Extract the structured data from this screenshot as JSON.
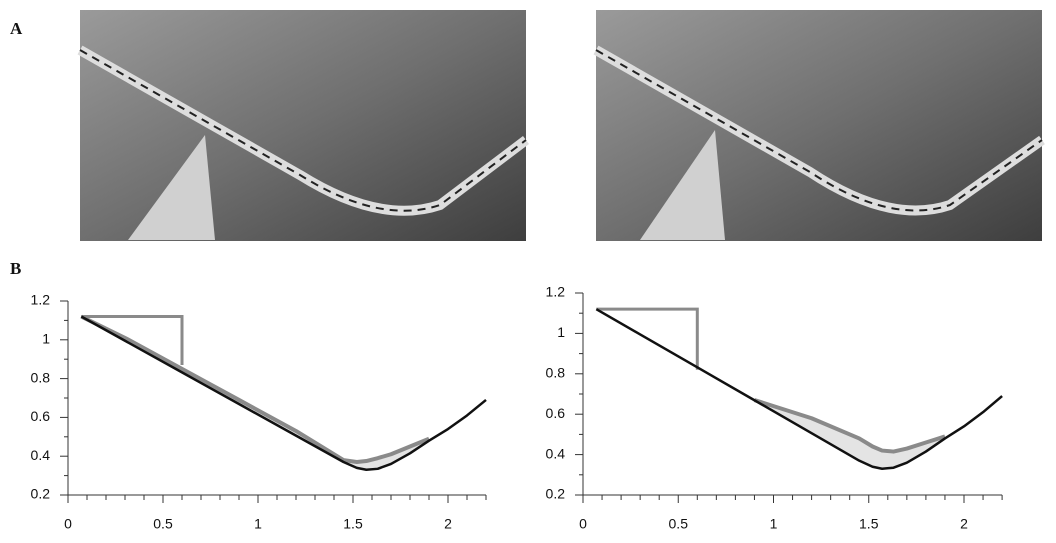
{
  "panel_labels": [
    "A",
    "B"
  ],
  "chart_data": [
    {
      "type": "line",
      "xlim": [
        0,
        2.2
      ],
      "ylim": [
        0.2,
        1.2
      ],
      "xticks": [
        0,
        0.5,
        1,
        1.5,
        2
      ],
      "yticks": [
        0.2,
        0.4,
        0.6,
        0.8,
        1,
        1.2
      ],
      "x": [
        0.07,
        0.3,
        0.6,
        0.9,
        1.2,
        1.45,
        1.52,
        1.57,
        1.63,
        1.7,
        1.8,
        1.9,
        2.0,
        2.1,
        2.2
      ],
      "series": [
        {
          "color": "#111111",
          "values": [
            1.12,
            0.995,
            0.832,
            0.669,
            0.506,
            0.37,
            0.34,
            0.33,
            0.335,
            0.36,
            0.415,
            0.48,
            0.54,
            0.61,
            0.69
          ]
        },
        {
          "color": "#8a8a8a",
          "values": [
            1.12,
            1.01,
            0.85,
            0.69,
            0.53,
            0.38,
            0.37,
            0.375,
            0.39,
            0.41,
            0.45,
            0.49,
            null,
            null,
            null
          ]
        }
      ],
      "reservoir": {
        "color": "#8a8a8a",
        "x": [
          0.07,
          0.6,
          0.6
        ],
        "values": [
          1.12,
          1.12,
          0.87
        ]
      }
    },
    {
      "type": "line",
      "xlim": [
        0,
        2.2
      ],
      "ylim": [
        0.2,
        1.2
      ],
      "xticks": [
        0,
        0.5,
        1,
        1.5,
        2
      ],
      "yticks": [
        0.2,
        0.4,
        0.6,
        0.8,
        1,
        1.2
      ],
      "x": [
        0.07,
        0.3,
        0.6,
        0.9,
        1.2,
        1.45,
        1.52,
        1.57,
        1.63,
        1.7,
        1.8,
        1.9,
        2.0,
        2.1,
        2.2
      ],
      "series": [
        {
          "color": "#111111",
          "values": [
            1.12,
            0.995,
            0.832,
            0.669,
            0.506,
            0.37,
            0.34,
            0.33,
            0.335,
            0.36,
            0.415,
            0.48,
            0.54,
            0.61,
            0.69
          ]
        },
        {
          "color": "#8a8a8a",
          "values": [
            null,
            null,
            null,
            0.67,
            0.58,
            0.48,
            0.44,
            0.42,
            0.415,
            0.43,
            0.46,
            0.49,
            null,
            null,
            null
          ]
        }
      ],
      "reservoir": {
        "color": "#8a8a8a",
        "x": [
          0.07,
          0.6,
          0.6
        ],
        "values": [
          1.12,
          1.12,
          0.82
        ]
      }
    }
  ]
}
